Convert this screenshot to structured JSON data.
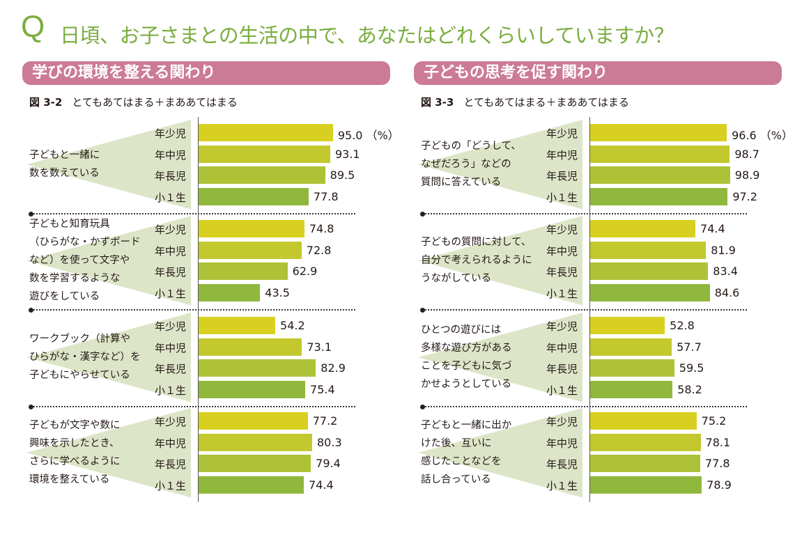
{
  "header": {
    "q_mark": "Q",
    "question": "日頃、お子さまとの生活の中で、あなたはどれくらいしていますか？"
  },
  "colors": {
    "title": "#7aad3e",
    "section_header": "#cc7b96",
    "fan": "#dde5c8",
    "bars": [
      "#d8d020",
      "#c2c82e",
      "#aec237",
      "#90b83c"
    ]
  },
  "chart_data": [
    {
      "type": "bar",
      "orientation": "horizontal",
      "section_title": "学びの環境を整える関わり",
      "figure_number": "図 3-2",
      "title": "とてもあてはまる＋まああてはまる",
      "unit": "（%）",
      "categories": [
        "年少児",
        "年中児",
        "年長児",
        "小１生"
      ],
      "xlim": [
        0,
        100
      ],
      "groups": [
        {
          "label": [
            "子どもと一緒に",
            "数を数えている"
          ],
          "values": [
            95.0,
            93.1,
            89.5,
            77.8
          ]
        },
        {
          "label": [
            "子どもと知育玩具",
            "（ひらがな・かずボード",
            "など）を使って文字や",
            "数を学習するような",
            "遊びをしている"
          ],
          "values": [
            74.8,
            72.8,
            62.9,
            43.5
          ]
        },
        {
          "label": [
            "ワークブック（計算や",
            "ひらがな・漢字など）を",
            "子どもにやらせている"
          ],
          "values": [
            54.2,
            73.1,
            82.9,
            75.4
          ]
        },
        {
          "label": [
            "子どもが文字や数に",
            "興味を示したとき、",
            "さらに学べるように",
            "環境を整えている"
          ],
          "values": [
            77.2,
            80.3,
            79.4,
            74.4
          ]
        }
      ]
    },
    {
      "type": "bar",
      "orientation": "horizontal",
      "section_title": "子どもの思考を促す関わり",
      "figure_number": "図 3-3",
      "title": "とてもあてはまる＋まああてはまる",
      "unit": "（%）",
      "categories": [
        "年少児",
        "年中児",
        "年長児",
        "小１生"
      ],
      "xlim": [
        0,
        100
      ],
      "groups": [
        {
          "label": [
            "子どもの「どうして、",
            "なぜだろう」などの",
            "質問に答えている"
          ],
          "values": [
            96.6,
            98.7,
            98.9,
            97.2
          ]
        },
        {
          "label": [
            "子どもの質問に対して、",
            "自分で考えられるように",
            "うながしている"
          ],
          "values": [
            74.4,
            81.9,
            83.4,
            84.6
          ]
        },
        {
          "label": [
            "ひとつの遊びには",
            "多様な遊び方がある",
            "ことを子どもに気づ",
            "かせようとしている"
          ],
          "values": [
            52.8,
            57.7,
            59.5,
            58.2
          ]
        },
        {
          "label": [
            "子どもと一緒に出か",
            "けた後、互いに",
            "感じたことなどを",
            "話し合っている"
          ],
          "values": [
            75.2,
            78.1,
            77.8,
            78.9
          ]
        }
      ]
    }
  ]
}
